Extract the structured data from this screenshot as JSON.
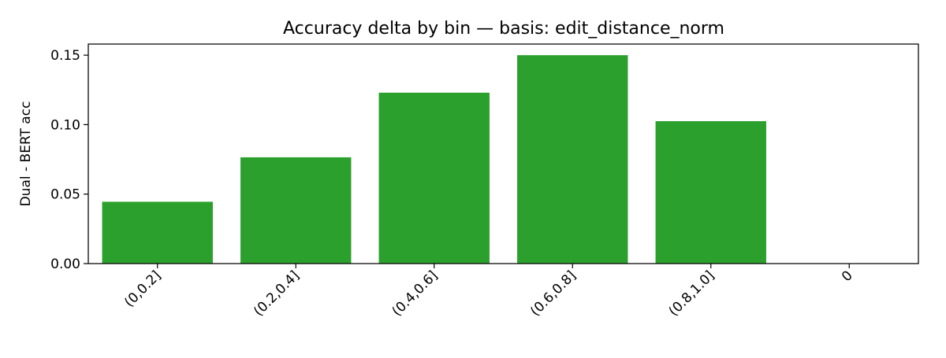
{
  "chart_data": {
    "type": "bar",
    "title": "Accuracy delta by bin — basis: edit_distance_norm",
    "xlabel": "",
    "ylabel": "Dual - BERT acc",
    "categories": [
      "(0,0.2]",
      "(0.2,0.4]",
      "(0.4,0.6]",
      "(0.6,0.8]",
      "(0.8,1.0]",
      "0"
    ],
    "values": [
      0.0445,
      0.0765,
      0.123,
      0.15,
      0.1025,
      0
    ],
    "ylim": [
      0,
      0.158
    ],
    "yticks": [
      0.0,
      0.05,
      0.1,
      0.15
    ],
    "ytick_labels": [
      "0.00",
      "0.05",
      "0.10",
      "0.15"
    ],
    "xtick_rotation": 45,
    "bar_color": "#2ca02c",
    "grid": false,
    "legend": "none"
  }
}
